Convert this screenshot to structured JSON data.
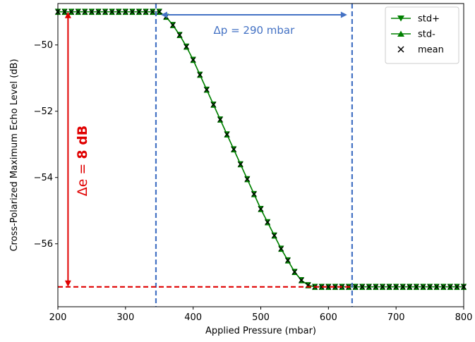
{
  "chart_data": {
    "type": "line",
    "xlabel": "Applied Pressure (mbar)",
    "ylabel": "Cross-Polarized Maximum Echo Level (dB)",
    "xlim": [
      200,
      800
    ],
    "ylim": [
      -57.9,
      -48.75
    ],
    "xticks": [
      200,
      300,
      400,
      500,
      600,
      700,
      800
    ],
    "yticks": [
      -50,
      -52,
      -54,
      -56
    ],
    "xtick_labels": [
      "200",
      "300",
      "400",
      "500",
      "600",
      "700",
      "800"
    ],
    "ytick_labels": [
      "−50",
      "−52",
      "−54",
      "−56"
    ],
    "grid": false,
    "legend_position": "top-right",
    "x": [
      200,
      210,
      220,
      230,
      240,
      250,
      260,
      270,
      280,
      290,
      300,
      310,
      320,
      330,
      340,
      350,
      360,
      370,
      380,
      390,
      400,
      410,
      420,
      430,
      440,
      450,
      460,
      470,
      480,
      490,
      500,
      510,
      520,
      530,
      540,
      550,
      560,
      570,
      580,
      590,
      600,
      610,
      620,
      630,
      640,
      650,
      660,
      670,
      680,
      690,
      700,
      710,
      720,
      730,
      740,
      750,
      760,
      770,
      780,
      790,
      800
    ],
    "series": [
      {
        "name": "std+",
        "marker": "triangle-down",
        "color": "#008000",
        "values": [
          -49.0,
          -49.0,
          -49.0,
          -49.0,
          -49.0,
          -49.0,
          -49.0,
          -49.0,
          -49.0,
          -49.0,
          -49.0,
          -49.0,
          -49.0,
          -49.0,
          -49.0,
          -49.0,
          -49.15,
          -49.4,
          -49.7,
          -50.05,
          -50.45,
          -50.9,
          -51.35,
          -51.8,
          -52.25,
          -52.7,
          -53.15,
          -53.6,
          -54.05,
          -54.5,
          -54.95,
          -55.35,
          -55.75,
          -56.15,
          -56.5,
          -56.85,
          -57.1,
          -57.25,
          -57.3,
          -57.3,
          -57.3,
          -57.3,
          -57.3,
          -57.3,
          -57.3,
          -57.3,
          -57.3,
          -57.3,
          -57.3,
          -57.3,
          -57.3,
          -57.3,
          -57.3,
          -57.3,
          -57.3,
          -57.3,
          -57.3,
          -57.3,
          -57.3,
          -57.3,
          -57.3
        ]
      },
      {
        "name": "std-",
        "marker": "triangle-up",
        "color": "#008000",
        "values": [
          -49.0,
          -49.0,
          -49.0,
          -49.0,
          -49.0,
          -49.0,
          -49.0,
          -49.0,
          -49.0,
          -49.0,
          -49.0,
          -49.0,
          -49.0,
          -49.0,
          -49.0,
          -49.0,
          -49.15,
          -49.4,
          -49.7,
          -50.05,
          -50.45,
          -50.9,
          -51.35,
          -51.8,
          -52.25,
          -52.7,
          -53.15,
          -53.6,
          -54.05,
          -54.5,
          -54.95,
          -55.35,
          -55.75,
          -56.15,
          -56.5,
          -56.85,
          -57.1,
          -57.25,
          -57.3,
          -57.3,
          -57.3,
          -57.3,
          -57.3,
          -57.3,
          -57.3,
          -57.3,
          -57.3,
          -57.3,
          -57.3,
          -57.3,
          -57.3,
          -57.3,
          -57.3,
          -57.3,
          -57.3,
          -57.3,
          -57.3,
          -57.3,
          -57.3,
          -57.3,
          -57.3
        ]
      },
      {
        "name": "mean",
        "marker": "x",
        "color": "#000000",
        "values": [
          -49.0,
          -49.0,
          -49.0,
          -49.0,
          -49.0,
          -49.0,
          -49.0,
          -49.0,
          -49.0,
          -49.0,
          -49.0,
          -49.0,
          -49.0,
          -49.0,
          -49.0,
          -49.0,
          -49.15,
          -49.4,
          -49.7,
          -50.05,
          -50.45,
          -50.9,
          -51.35,
          -51.8,
          -52.25,
          -52.7,
          -53.15,
          -53.6,
          -54.05,
          -54.5,
          -54.95,
          -55.35,
          -55.75,
          -56.15,
          -56.5,
          -56.85,
          -57.1,
          -57.25,
          -57.3,
          -57.3,
          -57.3,
          -57.3,
          -57.3,
          -57.3,
          -57.3,
          -57.3,
          -57.3,
          -57.3,
          -57.3,
          -57.3,
          -57.3,
          -57.3,
          -57.3,
          -57.3,
          -57.3,
          -57.3,
          -57.3,
          -57.3,
          -57.3,
          -57.3,
          -57.3
        ]
      }
    ],
    "annotations": {
      "delta_p_text": "Δp = 290 mbar",
      "delta_p_color": "#4472c4",
      "delta_p_range": [
        345,
        635
      ],
      "delta_e_prefix": "Δe = ",
      "delta_e_value": "8 dB",
      "delta_e_color": "#e00000",
      "delta_e_x": 215,
      "delta_e_range": [
        -49.0,
        -57.3
      ],
      "baseline_y": -57.3
    }
  }
}
